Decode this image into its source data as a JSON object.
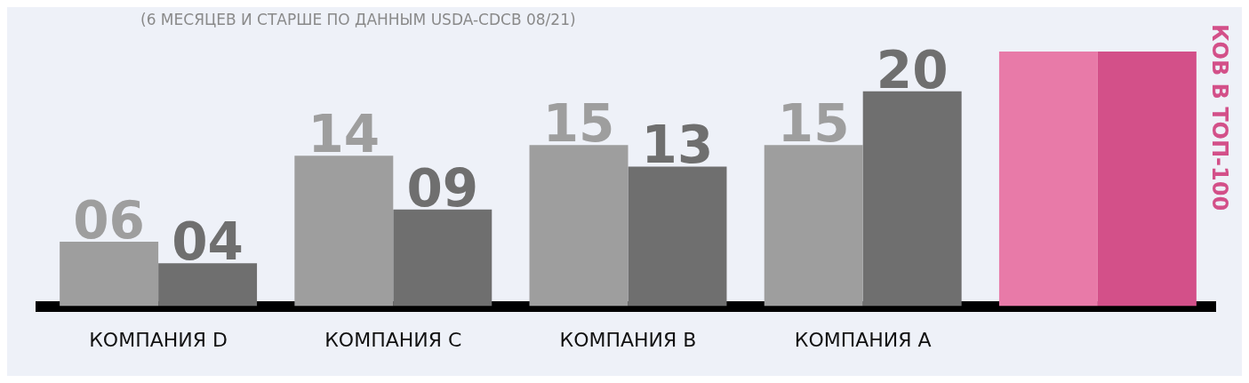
{
  "chart_data": {
    "type": "bar",
    "subtitle": "(6 МЕСЯЦЕВ И СТАРШЕ ПО ДАННЫМ USDA-CDCB 08/21)",
    "categories": [
      "КОМПАНИЯ D",
      "КОМПАНИЯ C",
      "КОМПАНИЯ B",
      "КОМПАНИЯ A",
      null
    ],
    "series": [
      {
        "colors": [
          "#9e9e9e",
          "#9e9e9e",
          "#9e9e9e",
          "#9e9e9e",
          "#e87aa8"
        ],
        "values": [
          6,
          14,
          15,
          15,
          23.7
        ],
        "value_labels": [
          "06",
          "14",
          "15",
          "15",
          null
        ]
      },
      {
        "colors": [
          "#6f6f6f",
          "#6f6f6f",
          "#6f6f6f",
          "#6f6f6f",
          "#d35089"
        ],
        "values": [
          4,
          9,
          13,
          20,
          23.7
        ],
        "value_labels": [
          "04",
          "09",
          "13",
          "20",
          null
        ]
      }
    ],
    "ylim": [
      0,
      23.7
    ],
    "grid": false,
    "legend": false,
    "annotations": [
      "КОВ В ТОП-100"
    ]
  }
}
